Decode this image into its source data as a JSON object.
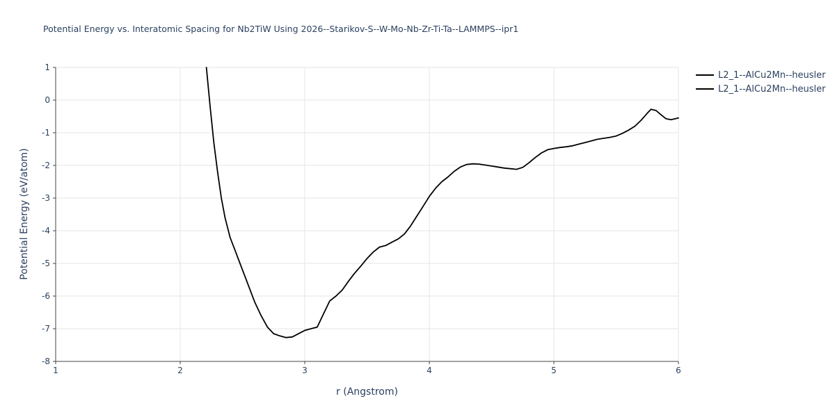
{
  "colors": {
    "background": "#ffffff",
    "text": "#2a3f5f",
    "grid": "#e5e5e5",
    "axis": "#444444",
    "line": "#000000"
  },
  "chart_data": {
    "type": "line",
    "title": "Potential Energy vs. Interatomic Spacing for Nb2TiW Using 2026--Starikov-S--W-Mo-Nb-Zr-Ti-Ta--LAMMPS--ipr1",
    "xlabel": "r (Angstrom)",
    "ylabel": "Potential Energy (eV/atom)",
    "xlim": [
      1,
      6
    ],
    "ylim": [
      -8,
      1
    ],
    "xticks": [
      1,
      2,
      3,
      4,
      5,
      6
    ],
    "yticks": [
      1,
      0,
      -1,
      -2,
      -3,
      -4,
      -5,
      -6,
      -7,
      -8
    ],
    "grid": true,
    "legend_position": "top-right-outside",
    "legend": [
      {
        "label": "L2_1--AlCu2Mn--heusler",
        "color": "#000000"
      },
      {
        "label": "L2_1--AlCu2Mn--heusler",
        "color": "#000000"
      }
    ],
    "series": [
      {
        "name": "L2_1--AlCu2Mn--heusler",
        "color": "#000000",
        "x": [
          2.21,
          2.24,
          2.27,
          2.3,
          2.33,
          2.36,
          2.4,
          2.44,
          2.48,
          2.52,
          2.56,
          2.6,
          2.65,
          2.7,
          2.75,
          2.8,
          2.85,
          2.9,
          2.95,
          3.0,
          3.05,
          3.1,
          3.15,
          3.2,
          3.25,
          3.3,
          3.35,
          3.4,
          3.45,
          3.5,
          3.55,
          3.6,
          3.65,
          3.7,
          3.75,
          3.8,
          3.85,
          3.9,
          3.95,
          4.0,
          4.05,
          4.1,
          4.15,
          4.2,
          4.25,
          4.3,
          4.35,
          4.4,
          4.45,
          4.5,
          4.55,
          4.6,
          4.65,
          4.7,
          4.75,
          4.8,
          4.85,
          4.9,
          4.95,
          5.0,
          5.05,
          5.1,
          5.15,
          5.2,
          5.25,
          5.3,
          5.35,
          5.4,
          5.45,
          5.5,
          5.55,
          5.6,
          5.65,
          5.7,
          5.75,
          5.78,
          5.82,
          5.86,
          5.9,
          5.94,
          6.0
        ],
        "y": [
          1.0,
          -0.2,
          -1.3,
          -2.2,
          -3.0,
          -3.6,
          -4.2,
          -4.6,
          -5.0,
          -5.4,
          -5.8,
          -6.2,
          -6.6,
          -6.95,
          -7.15,
          -7.22,
          -7.27,
          -7.25,
          -7.15,
          -7.05,
          -7.0,
          -6.95,
          -6.55,
          -6.15,
          -6.0,
          -5.82,
          -5.55,
          -5.3,
          -5.08,
          -4.85,
          -4.65,
          -4.5,
          -4.45,
          -4.35,
          -4.25,
          -4.1,
          -3.85,
          -3.55,
          -3.25,
          -2.95,
          -2.7,
          -2.5,
          -2.35,
          -2.18,
          -2.05,
          -1.97,
          -1.95,
          -1.96,
          -1.99,
          -2.02,
          -2.05,
          -2.08,
          -2.1,
          -2.12,
          -2.06,
          -1.92,
          -1.76,
          -1.62,
          -1.52,
          -1.48,
          -1.45,
          -1.43,
          -1.4,
          -1.35,
          -1.3,
          -1.25,
          -1.2,
          -1.17,
          -1.14,
          -1.1,
          -1.02,
          -0.92,
          -0.8,
          -0.62,
          -0.4,
          -0.28,
          -0.32,
          -0.45,
          -0.57,
          -0.6,
          -0.55
        ]
      }
    ]
  }
}
